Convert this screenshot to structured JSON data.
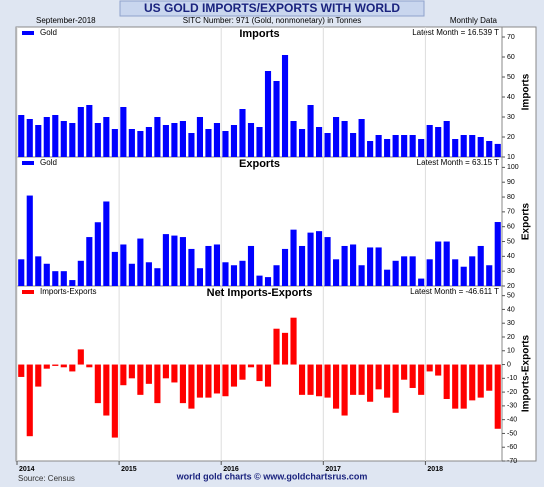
{
  "header": {
    "title": "US GOLD IMPORTS/EXPORTS WITH WORLD",
    "date": "September-2018",
    "subtitle": "SITC Number: 971 (Gold, nonmonetary) in Tonnes",
    "frequency": "Monthly Data"
  },
  "footer": {
    "source": "Source: Census",
    "credit": "world gold charts © www.goldchartsrus.com"
  },
  "chart_data": [
    {
      "type": "bar",
      "title": "Imports",
      "y_label": "Imports",
      "annotation": "Latest Month = 16.539 T",
      "series": [
        {
          "name": "Gold",
          "color": "#0000ff",
          "values": [
            31,
            29,
            26,
            30,
            31,
            28,
            27,
            35,
            36,
            27,
            30,
            24,
            35,
            24,
            23,
            25,
            30,
            26,
            27,
            28,
            22,
            30,
            24,
            27,
            23,
            26,
            34,
            27,
            25,
            53,
            48,
            61,
            28,
            24,
            36,
            25,
            22,
            30,
            28,
            22,
            29,
            18,
            21,
            19,
            21,
            21,
            21,
            19,
            26,
            25,
            28,
            19,
            21,
            21,
            20,
            18,
            16.539
          ]
        }
      ],
      "ylim": [
        10,
        75
      ],
      "yticks": [
        10,
        20,
        30,
        40,
        50,
        60,
        70
      ]
    },
    {
      "type": "bar",
      "title": "Exports",
      "y_label": "Exports",
      "annotation": "Latest Month = 63.15 T",
      "series": [
        {
          "name": "Gold",
          "color": "#0000ff",
          "values": [
            38,
            81,
            40,
            35,
            30,
            30,
            24,
            37,
            53,
            63,
            77,
            43,
            48,
            35,
            52,
            36,
            32,
            55,
            54,
            53,
            45,
            32,
            47,
            48,
            36,
            34,
            37,
            47,
            27,
            26,
            34,
            45,
            58,
            47,
            56,
            57,
            53,
            38,
            47,
            48,
            34,
            46,
            46,
            31,
            37,
            40,
            40,
            25,
            38,
            50,
            50,
            38,
            33,
            40,
            47,
            34,
            63.15
          ]
        }
      ],
      "ylim": [
        20,
        107
      ],
      "yticks": [
        20,
        30,
        40,
        50,
        60,
        70,
        80,
        90,
        100
      ]
    },
    {
      "type": "bar",
      "title": "Net Imports-Exports",
      "y_label": "Imports-Exports",
      "annotation": "Latest Month = -46.611 T",
      "categories": [
        "2014",
        null,
        null,
        null,
        null,
        null,
        null,
        null,
        null,
        null,
        null,
        null,
        "2015",
        null,
        null,
        null,
        null,
        null,
        null,
        null,
        null,
        null,
        null,
        null,
        "2016",
        null,
        null,
        null,
        null,
        null,
        null,
        null,
        null,
        null,
        null,
        null,
        "2017",
        null,
        null,
        null,
        null,
        null,
        null,
        null,
        null,
        null,
        null,
        null,
        "2018",
        null,
        null,
        null,
        null,
        null,
        null,
        null,
        null
      ],
      "series": [
        {
          "name": "Imports-Exports",
          "color": "#ff0000",
          "values": [
            -9,
            -52,
            -16,
            -3,
            -1,
            -2,
            -5,
            11,
            -2,
            -28,
            -37,
            -53,
            -15,
            -10,
            -22,
            -14,
            -28,
            -10,
            -13,
            -28,
            -32,
            -24,
            -24,
            -21,
            -23,
            -16,
            -11,
            -2,
            -12,
            -16,
            26,
            23,
            34,
            -22,
            -22,
            -23,
            -24,
            -32,
            -37,
            -22,
            -22,
            -27,
            -18,
            -24,
            -35,
            -11,
            -17,
            -22,
            -5,
            -8,
            -25,
            -32,
            -32,
            -26,
            -24,
            -19,
            -46.611
          ]
        }
      ],
      "ylim": [
        -70,
        57
      ],
      "yticks": [
        -70,
        -60,
        -50,
        -40,
        -30,
        -20,
        -10,
        0,
        10,
        20,
        30,
        40,
        50
      ]
    }
  ]
}
